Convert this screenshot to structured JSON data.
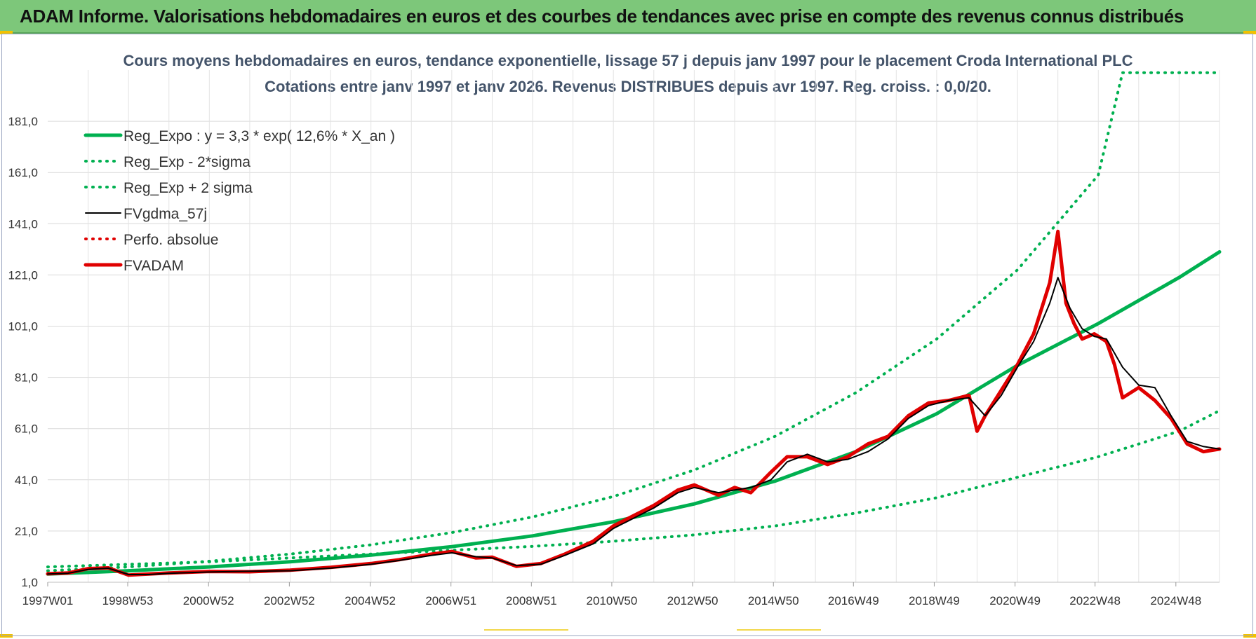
{
  "banner": {
    "title": "ADAM Informe. Valorisations hebdomadaires en euros et des courbes de tendances avec prise en compte des revenus connus distribués"
  },
  "colors": {
    "banner_bg": "#7dc77a",
    "green": "#00b050",
    "black": "#000000",
    "red": "#e00000"
  },
  "chart_data": {
    "type": "line",
    "title": "Cours moyens hebdomadaires en euros, tendance exponentielle, lissage 57 j depuis janv 1997 pour le placement Croda International PLC",
    "subtitle": "Cotations entre janv 1997 et janv 2026. Revenus DISTRIBUES depuis avr 1997. Reg. croiss. : 0,0/20.",
    "xlabel": "",
    "ylabel": "",
    "xlim": [
      1997.0,
      2026.0
    ],
    "ylim": [
      1.0,
      201.0
    ],
    "yticks": [
      1.0,
      21.0,
      41.0,
      61.0,
      81.0,
      101.0,
      121.0,
      141.0,
      161.0,
      181.0
    ],
    "ytick_labels": [
      "1,0",
      "21,0",
      "41,0",
      "61,0",
      "81,0",
      "101,0",
      "121,0",
      "141,0",
      "161,0",
      "181,0"
    ],
    "xticks": [
      1997.0,
      1998.98,
      2000.98,
      2002.98,
      2004.98,
      2006.98,
      2008.97,
      2010.96,
      2012.96,
      2014.96,
      2016.94,
      2018.94,
      2020.94,
      2022.92,
      2024.92
    ],
    "xtick_labels": [
      "1997W01",
      "1998W53",
      "2000W52",
      "2002W52",
      "2004W52",
      "2006W51",
      "2008W51",
      "2010W50",
      "2012W50",
      "2014W50",
      "2016W49",
      "2018W49",
      "2020W49",
      "2022W48",
      "2024W48"
    ],
    "legend_position": "top-left",
    "series": [
      {
        "name": "Reg_Expo : y = 3,3 * exp( 12,6% *  X_an )",
        "style": "solid-thick",
        "color": "#00b050",
        "x": [
          1997,
          1999,
          2001,
          2003,
          2005,
          2007,
          2009,
          2011,
          2013,
          2015,
          2017,
          2019,
          2021,
          2023,
          2025,
          2026
        ],
        "y": [
          4.2,
          5.5,
          7.0,
          9.0,
          11.6,
          14.9,
          19.1,
          24.6,
          31.6,
          40.5,
          52.0,
          66.8,
          85.7,
          102.0,
          120.0,
          130.0
        ]
      },
      {
        "name": "Reg_Exp - 2*sigma",
        "style": "dotted",
        "color": "#00b050",
        "x": [
          1997,
          1999,
          2001,
          2003,
          2005,
          2007,
          2009,
          2011,
          2013,
          2015,
          2017,
          2019,
          2021,
          2023,
          2025,
          2026
        ],
        "y": [
          7.0,
          8.0,
          9.0,
          10.5,
          12.0,
          13.5,
          15.0,
          17.0,
          19.5,
          23.0,
          28.0,
          34.0,
          42.0,
          50.0,
          60.0,
          68.0
        ]
      },
      {
        "name": "Reg_Exp + 2 sigma",
        "style": "dotted",
        "color": "#00b050",
        "x": [
          1997,
          1999,
          2001,
          2003,
          2005,
          2007,
          2009,
          2011,
          2013,
          2015,
          2017,
          2019,
          2021,
          2023,
          2023.6,
          2026
        ],
        "y": [
          5.5,
          7.0,
          9.2,
          12.0,
          15.6,
          20.4,
          26.5,
          34.5,
          44.8,
          58.0,
          75.0,
          96.0,
          123.0,
          160.0,
          200.0,
          200.0
        ]
      },
      {
        "name": "FVgdma_57j",
        "style": "solid",
        "color": "#000000",
        "x": [
          1997,
          1997.5,
          1998,
          1998.5,
          1999,
          1999.5,
          2000,
          2001,
          2002,
          2003,
          2004,
          2005,
          2005.7,
          2006.5,
          2007,
          2007.6,
          2008,
          2008.6,
          2009.2,
          2009.8,
          2010.5,
          2011,
          2011.5,
          2012,
          2012.6,
          2013,
          2013.6,
          2014,
          2014.4,
          2014.9,
          2015.3,
          2015.8,
          2016.3,
          2016.8,
          2017.3,
          2017.8,
          2018.3,
          2018.8,
          2019.3,
          2019.8,
          2020.2,
          2020.6,
          2021,
          2021.4,
          2021.8,
          2022,
          2022.3,
          2022.6,
          2022.9,
          2023.2,
          2023.6,
          2024,
          2024.4,
          2024.8,
          2025.2,
          2025.6,
          2026
        ],
        "y": [
          4.2,
          4.5,
          6.0,
          6.5,
          4.0,
          4.0,
          4.5,
          5.0,
          5.3,
          5.5,
          6.5,
          8.0,
          9.5,
          11.5,
          12.5,
          11.0,
          10.5,
          7.5,
          8.0,
          11.5,
          16.0,
          22.0,
          26.0,
          30.0,
          36.0,
          38.0,
          36.0,
          37.0,
          38.0,
          41.0,
          48.0,
          51.0,
          48.0,
          49.0,
          52.0,
          57.0,
          65.0,
          70.0,
          72.0,
          73.0,
          66.0,
          74.0,
          85.0,
          95.0,
          110.0,
          120.0,
          108.0,
          100.0,
          97.0,
          96.0,
          85.0,
          78.0,
          77.0,
          66.0,
          56.0,
          54.0,
          53.0
        ]
      },
      {
        "name": "Perfo. absolue",
        "style": "dotted",
        "color": "#e00000",
        "x": [],
        "y": []
      },
      {
        "name": "FVADAM",
        "style": "solid-thick",
        "color": "#e00000",
        "x": [
          1997,
          1997.5,
          1998,
          1998.5,
          1999,
          1999.5,
          2000,
          2001,
          2002,
          2003,
          2004,
          2005,
          2005.7,
          2006.5,
          2007,
          2007.6,
          2008,
          2008.6,
          2009.2,
          2009.8,
          2010.5,
          2011,
          2011.5,
          2012,
          2012.6,
          2013,
          2013.6,
          2014,
          2014.4,
          2014.9,
          2015.3,
          2015.8,
          2016.3,
          2016.8,
          2017.3,
          2017.8,
          2018.3,
          2018.8,
          2019.3,
          2019.8,
          2020.0,
          2020.2,
          2020.6,
          2021,
          2021.4,
          2021.8,
          2022,
          2022.2,
          2022.4,
          2022.6,
          2022.9,
          2023.2,
          2023.4,
          2023.6,
          2024,
          2024.4,
          2024.8,
          2025.2,
          2025.6,
          2026
        ],
        "y": [
          4.3,
          4.6,
          6.3,
          6.6,
          3.8,
          4.2,
          4.6,
          5.2,
          5.1,
          5.7,
          6.8,
          8.3,
          9.8,
          12.0,
          13.0,
          10.5,
          10.8,
          7.2,
          8.3,
          12.0,
          17.0,
          23.0,
          27.0,
          31.0,
          37.0,
          39.0,
          35.0,
          38.0,
          36.0,
          44.0,
          50.0,
          50.0,
          47.0,
          50.0,
          55.0,
          58.0,
          66.0,
          71.0,
          72.0,
          74.0,
          60.0,
          66.0,
          76.0,
          86.0,
          98.0,
          118.0,
          138.0,
          110.0,
          102.0,
          96.0,
          98.0,
          95.0,
          86.0,
          73.0,
          77.0,
          72.0,
          65.0,
          55.0,
          52.0,
          53.0
        ]
      }
    ]
  }
}
